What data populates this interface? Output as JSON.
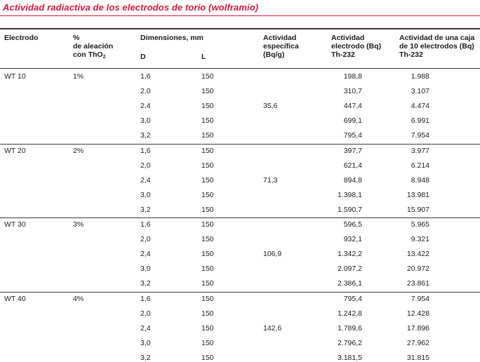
{
  "title": "Actividad radiactiva de los electrodos de torio (wolframio)",
  "headers": {
    "electrodo": "Electrodo",
    "aleacion_1": "%",
    "aleacion_2": "de aleación",
    "aleacion_3": "con ThO",
    "aleacion_sub": "2",
    "dimensiones": "Dimensiones, mm",
    "dim_d": "D",
    "dim_l": "L",
    "esp_1": "Actividad",
    "esp_2": "específica",
    "esp_3": "(Bq/g)",
    "elec_1": "Actividad",
    "elec_2": "electrodo (Bq)",
    "elec_3": "Th-232",
    "caja_1": "Actividad de una caja",
    "caja_2": "de 10 electrodos (Bq)",
    "caja_3": "Th-232"
  },
  "groups": [
    {
      "electrodo": "WT 10",
      "aleacion": "1%",
      "especifica": "35,6",
      "rows": [
        {
          "d": "1,6",
          "l": "150",
          "elec": "198,8",
          "caja": "1.988"
        },
        {
          "d": "2,0",
          "l": "150",
          "elec": "310,7",
          "caja": "3.107"
        },
        {
          "d": "2,4",
          "l": "150",
          "elec": "447,4",
          "caja": "4.474"
        },
        {
          "d": "3,0",
          "l": "150",
          "elec": "699,1",
          "caja": "6.991"
        },
        {
          "d": "3,2",
          "l": "150",
          "elec": "795,4",
          "caja": "7.954"
        }
      ]
    },
    {
      "electrodo": "WT 20",
      "aleacion": "2%",
      "especifica": "71,3",
      "rows": [
        {
          "d": "1,6",
          "l": "150",
          "elec": "397,7",
          "caja": "3.977"
        },
        {
          "d": "2,0",
          "l": "150",
          "elec": "621,4",
          "caja": "6.214"
        },
        {
          "d": "2,4",
          "l": "150",
          "elec": "894,8",
          "caja": "8.948"
        },
        {
          "d": "3,0",
          "l": "150",
          "elec": "1.398,1",
          "caja": "13.981"
        },
        {
          "d": "3,2",
          "l": "150",
          "elec": "1.590,7",
          "caja": "15.907"
        }
      ]
    },
    {
      "electrodo": "WT 30",
      "aleacion": "3%",
      "especifica": "106,9",
      "rows": [
        {
          "d": "1,6",
          "l": "150",
          "elec": "596,5",
          "caja": "5.965"
        },
        {
          "d": "2,0",
          "l": "150",
          "elec": "932,1",
          "caja": "9.321"
        },
        {
          "d": "2,4",
          "l": "150",
          "elec": "1.342,2",
          "caja": "13.422"
        },
        {
          "d": "3,0",
          "l": "150",
          "elec": "2.097,2",
          "caja": "20.972"
        },
        {
          "d": "3,2",
          "l": "150",
          "elec": "2.386,1",
          "caja": "23.861"
        }
      ]
    },
    {
      "electrodo": "WT 40",
      "aleacion": "4%",
      "especifica": "142,6",
      "rows": [
        {
          "d": "1,6",
          "l": "150",
          "elec": "795,4",
          "caja": "7.954"
        },
        {
          "d": "2,0",
          "l": "150",
          "elec": "1.242,8",
          "caja": "12.428"
        },
        {
          "d": "2,4",
          "l": "150",
          "elec": "1.789,6",
          "caja": "17.896"
        },
        {
          "d": "3,0",
          "l": "150",
          "elec": "2.796,2",
          "caja": "27.962"
        },
        {
          "d": "3,2",
          "l": "150",
          "elec": "3.181,5",
          "caja": "31.815"
        }
      ]
    }
  ]
}
